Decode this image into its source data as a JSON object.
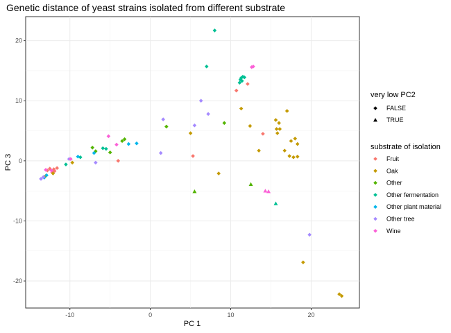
{
  "chart_data": {
    "type": "scatter",
    "title": "Genetic distance of yeast strains isolated from different substrate",
    "xlabel": "PC 1",
    "ylabel": "PC 3",
    "xlim": [
      -15.5,
      26.0
    ],
    "ylim": [
      -24.5,
      24.0
    ],
    "x_ticks": [
      -10,
      0,
      10,
      20
    ],
    "y_ticks": [
      -20,
      -10,
      0,
      10,
      20
    ],
    "grid": true,
    "legend_position": "right",
    "shape_legend": {
      "title": "very low PC2",
      "entries": [
        {
          "label": "FALSE",
          "shape": "diamond"
        },
        {
          "label": "TRUE",
          "shape": "triangle"
        }
      ]
    },
    "color_legend": {
      "title": "substrate of isolation",
      "entries": [
        {
          "label": "Fruit",
          "color": "#F8766D"
        },
        {
          "label": "Oak",
          "color": "#C49A00"
        },
        {
          "label": "Other",
          "color": "#53B400"
        },
        {
          "label": "Other fermentation",
          "color": "#00C094"
        },
        {
          "label": "Other plant material",
          "color": "#00B6EB"
        },
        {
          "label": "Other tree",
          "color": "#A58AFF"
        },
        {
          "label": "Wine",
          "color": "#FB61D7"
        }
      ]
    },
    "series": [
      {
        "name": "Fruit",
        "points": [
          [
            -12.5,
            -1.3,
            "FALSE"
          ],
          [
            -12.0,
            -1.4,
            "FALSE"
          ],
          [
            -11.6,
            -1.2,
            "FALSE"
          ],
          [
            -12.8,
            -1.6,
            "FALSE"
          ],
          [
            -11.9,
            -1.7,
            "FALSE"
          ],
          [
            -12.2,
            -1.9,
            "FALSE"
          ],
          [
            -4.0,
            0.0,
            "FALSE"
          ],
          [
            5.3,
            0.8,
            "FALSE"
          ],
          [
            10.7,
            11.7,
            "FALSE"
          ],
          [
            12.1,
            12.8,
            "FALSE"
          ],
          [
            14.0,
            4.5,
            "FALSE"
          ]
        ]
      },
      {
        "name": "Oak",
        "points": [
          [
            -13.0,
            -2.5,
            "FALSE"
          ],
          [
            -12.1,
            -2.1,
            "FALSE"
          ],
          [
            -9.7,
            -0.3,
            "FALSE"
          ],
          [
            5.0,
            4.6,
            "FALSE"
          ],
          [
            8.5,
            -2.1,
            "FALSE"
          ],
          [
            11.3,
            8.7,
            "FALSE"
          ],
          [
            12.4,
            5.8,
            "FALSE"
          ],
          [
            13.5,
            1.7,
            "FALSE"
          ],
          [
            15.6,
            6.8,
            "FALSE"
          ],
          [
            16.0,
            6.3,
            "FALSE"
          ],
          [
            16.1,
            5.3,
            "FALSE"
          ],
          [
            15.8,
            4.6,
            "FALSE"
          ],
          [
            15.7,
            5.3,
            "FALSE"
          ],
          [
            16.7,
            1.7,
            "FALSE"
          ],
          [
            17.0,
            8.3,
            "FALSE"
          ],
          [
            17.5,
            3.3,
            "FALSE"
          ],
          [
            18.0,
            3.7,
            "FALSE"
          ],
          [
            18.3,
            2.8,
            "FALSE"
          ],
          [
            17.3,
            0.8,
            "FALSE"
          ],
          [
            17.8,
            0.6,
            "FALSE"
          ],
          [
            18.3,
            0.7,
            "FALSE"
          ],
          [
            19.0,
            -16.9,
            "FALSE"
          ],
          [
            23.5,
            -22.2,
            "FALSE"
          ],
          [
            23.8,
            -22.5,
            "FALSE"
          ]
        ]
      },
      {
        "name": "Other",
        "points": [
          [
            -7.2,
            2.2,
            "FALSE"
          ],
          [
            -6.8,
            1.6,
            "FALSE"
          ],
          [
            -5.0,
            1.4,
            "FALSE"
          ],
          [
            -3.5,
            3.3,
            "FALSE"
          ],
          [
            -3.2,
            3.6,
            "FALSE"
          ],
          [
            2.0,
            5.7,
            "FALSE"
          ],
          [
            9.2,
            6.3,
            "FALSE"
          ],
          [
            5.5,
            -5.1,
            "TRUE"
          ],
          [
            12.5,
            -3.9,
            "TRUE"
          ]
        ]
      },
      {
        "name": "Other fermentation",
        "points": [
          [
            -10.5,
            -0.6,
            "FALSE"
          ],
          [
            -8.7,
            0.6,
            "FALSE"
          ],
          [
            -5.9,
            2.1,
            "FALSE"
          ],
          [
            -5.5,
            2.0,
            "FALSE"
          ],
          [
            8.0,
            21.7,
            "FALSE"
          ],
          [
            7.0,
            15.7,
            "FALSE"
          ],
          [
            11.2,
            13.5,
            "FALSE"
          ],
          [
            11.5,
            14.0,
            "FALSE"
          ],
          [
            11.4,
            13.3,
            "FALSE"
          ],
          [
            11.1,
            13.0,
            "FALSE"
          ],
          [
            11.7,
            13.9,
            "FALSE"
          ],
          [
            11.3,
            13.8,
            "FALSE"
          ],
          [
            15.6,
            -7.1,
            "TRUE"
          ]
        ]
      },
      {
        "name": "Other plant material",
        "points": [
          [
            -13.2,
            -2.8,
            "FALSE"
          ],
          [
            -12.9,
            -2.4,
            "FALSE"
          ],
          [
            -9.0,
            0.7,
            "FALSE"
          ],
          [
            -7.0,
            1.3,
            "FALSE"
          ],
          [
            -2.7,
            2.8,
            "FALSE"
          ],
          [
            -1.7,
            2.9,
            "FALSE"
          ]
        ]
      },
      {
        "name": "Other tree",
        "points": [
          [
            -13.6,
            -3.0,
            "FALSE"
          ],
          [
            -13.3,
            -2.7,
            "FALSE"
          ],
          [
            -10.1,
            0.3,
            "FALSE"
          ],
          [
            -6.8,
            -0.3,
            "FALSE"
          ],
          [
            1.3,
            1.3,
            "FALSE"
          ],
          [
            1.6,
            6.9,
            "FALSE"
          ],
          [
            5.5,
            5.9,
            "FALSE"
          ],
          [
            6.3,
            10.0,
            "FALSE"
          ],
          [
            7.2,
            7.8,
            "FALSE"
          ],
          [
            19.8,
            -12.3,
            "FALSE"
          ]
        ]
      },
      {
        "name": "Wine",
        "points": [
          [
            -13.0,
            -1.5,
            "FALSE"
          ],
          [
            -12.3,
            -1.6,
            "FALSE"
          ],
          [
            -9.9,
            0.3,
            "FALSE"
          ],
          [
            -5.2,
            4.1,
            "FALSE"
          ],
          [
            -4.2,
            2.7,
            "FALSE"
          ],
          [
            12.6,
            15.6,
            "FALSE"
          ],
          [
            12.8,
            15.7,
            "FALSE"
          ],
          [
            14.3,
            -5.0,
            "TRUE"
          ],
          [
            14.7,
            -5.1,
            "TRUE"
          ]
        ]
      }
    ]
  }
}
